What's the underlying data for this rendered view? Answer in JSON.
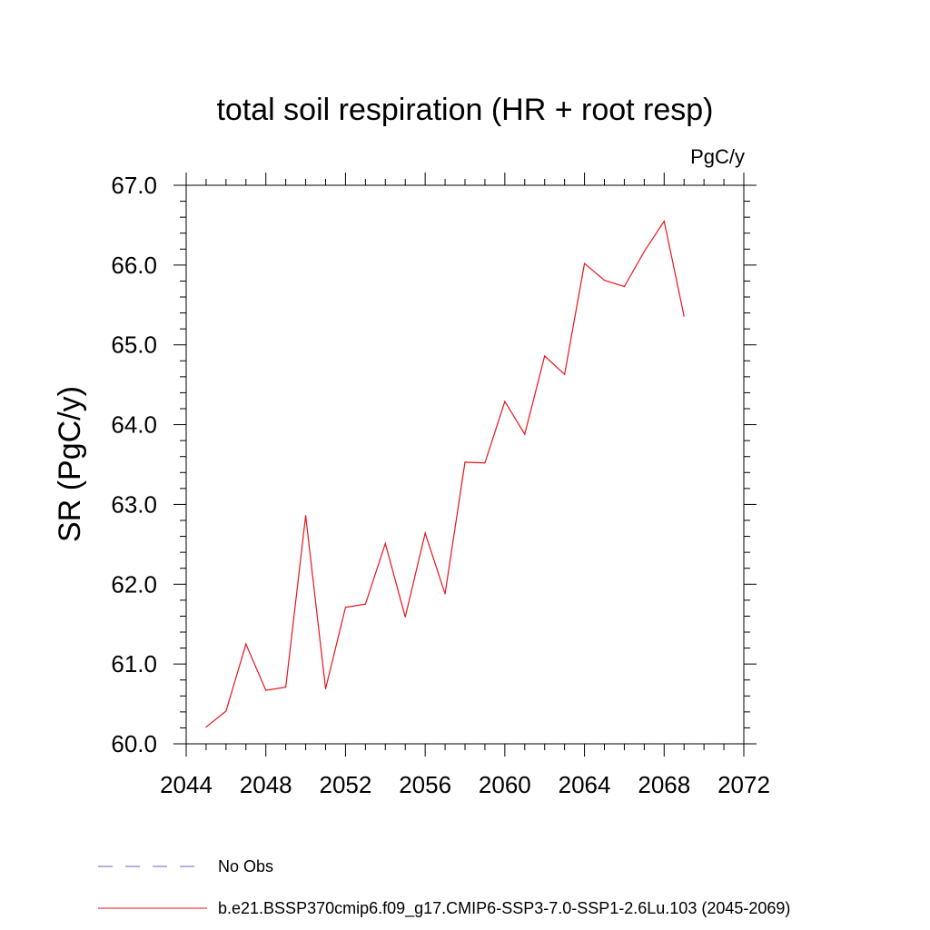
{
  "chart_data": {
    "type": "line",
    "title": "total soil respiration (HR + root resp)",
    "units": "PgC/y",
    "xlabel": "",
    "ylabel": "SR  (PgC/y)",
    "xlim": [
      2044,
      2072
    ],
    "ylim": [
      60.0,
      67.0
    ],
    "xticks": [
      2044,
      2048,
      2052,
      2056,
      2060,
      2064,
      2068,
      2072
    ],
    "xtick_labels": [
      "2044",
      "2048",
      "2052",
      "2056",
      "2060",
      "2064",
      "2068",
      "2072"
    ],
    "yticks": [
      60,
      61,
      62,
      63,
      64,
      65,
      66,
      67
    ],
    "ytick_labels": [
      "60.0",
      "61.0",
      "62.0",
      "63.0",
      "64.0",
      "65.0",
      "66.0",
      "67.0"
    ],
    "grid": false,
    "series": [
      {
        "name": "b.e21.BSSP370cmip6.f09_g17.CMIP6-SSP3-7.0-SSP1-2.6Lu.103 (2045-2069)",
        "color": "#e8141c",
        "x": [
          2045,
          2046,
          2047,
          2048,
          2049,
          2050,
          2051,
          2052,
          2053,
          2054,
          2055,
          2056,
          2057,
          2058,
          2059,
          2060,
          2061,
          2062,
          2063,
          2064,
          2065,
          2066,
          2067,
          2068,
          2069
        ],
        "values": [
          60.21,
          60.41,
          61.25,
          60.67,
          60.71,
          62.86,
          60.69,
          61.71,
          61.75,
          62.51,
          61.59,
          62.64,
          61.88,
          63.53,
          63.52,
          64.29,
          63.88,
          64.86,
          64.63,
          66.02,
          65.81,
          65.73,
          66.17,
          66.55,
          65.36
        ]
      }
    ],
    "legend": [
      {
        "label": "No Obs",
        "color": "#6f5fbf",
        "style": "dashed"
      },
      {
        "label": "b.e21.BSSP370cmip6.f09_g17.CMIP6-SSP3-7.0-SSP1-2.6Lu.103 (2045-2069)",
        "color": "#e8141c",
        "style": "solid"
      }
    ],
    "legend_position": "bottom"
  }
}
